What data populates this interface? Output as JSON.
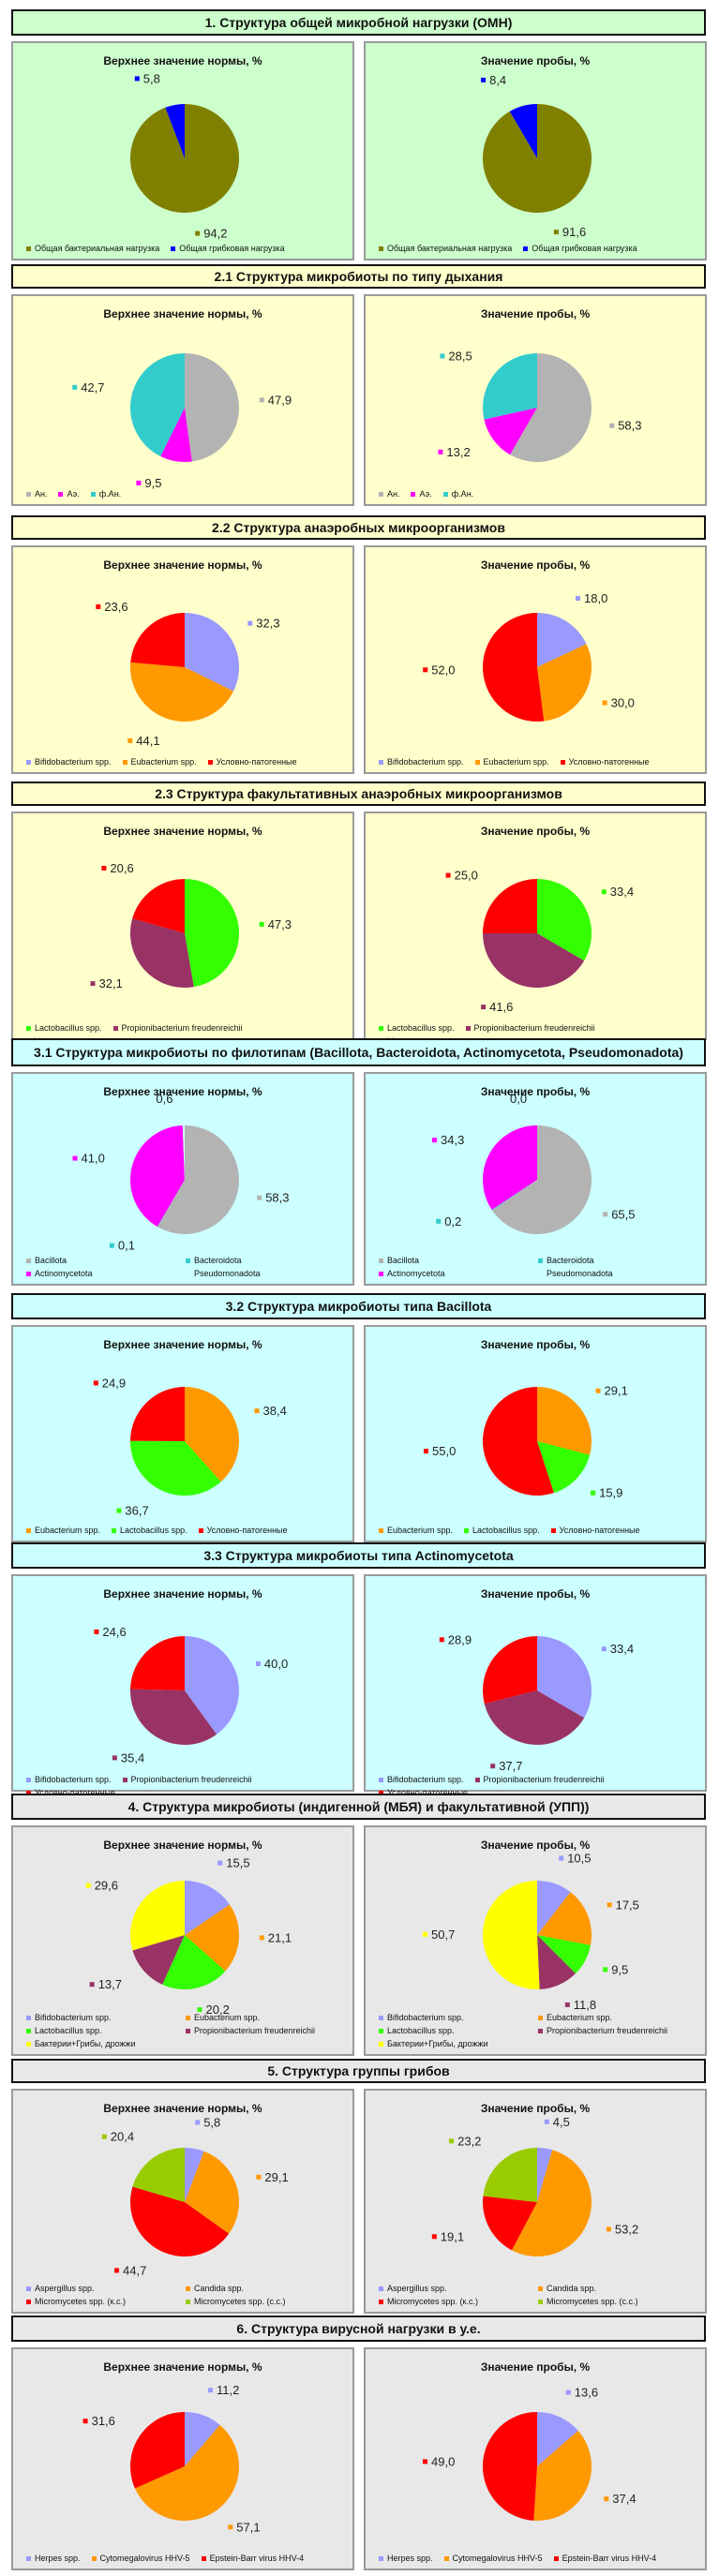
{
  "colors": {
    "green_bg": "#ccffcc",
    "yellow_bg": "#ffffcc",
    "cyan_bg": "#ccffff",
    "gray_bg": "#e8e8e8",
    "olive": "#808000",
    "blue": "#0000ff",
    "cyan": "#33cccc",
    "magenta": "#ff00ff",
    "silver": "#b3b3b3",
    "orange": "#ff9900",
    "periwinkle": "#9999ff",
    "red": "#ff0000",
    "maroon": "#993366",
    "lime": "#33ff00",
    "yellow": "#ffff00",
    "yellowgreen": "#99cc00"
  },
  "sections": [
    {
      "title": "1. Структура общей микробной нагрузки (ОМН)",
      "background": "green",
      "legend": [
        "Общая бактериальная нагрузка",
        "Общая грибковая нагрузка"
      ],
      "charts": [
        {
          "title": "Верхнее значение нормы, %",
          "chart_data": {
            "type": "pie",
            "labels": [
              "Общая бактериальная нагрузка",
              "Общая грибковая нагрузка"
            ],
            "values": [
              94.2,
              5.8
            ],
            "value_labels": [
              "94,2",
              "5,8"
            ],
            "colors": [
              "#808000",
              "#0000ff"
            ]
          }
        },
        {
          "title": "Значение пробы, %",
          "chart_data": {
            "type": "pie",
            "labels": [
              "Общая бактериальная нагрузка",
              "Общая грибковая нагрузка"
            ],
            "values": [
              91.6,
              8.4
            ],
            "value_labels": [
              "91,6",
              "8,4"
            ],
            "colors": [
              "#808000",
              "#0000ff"
            ]
          }
        }
      ]
    },
    {
      "title": "2.1 Структура микробиоты по типу дыхания",
      "background": "yellow",
      "legend": [
        "Ан.",
        "Аэ.",
        "ф.Ан."
      ],
      "charts": [
        {
          "title": "Верхнее значение нормы, %",
          "chart_data": {
            "type": "pie",
            "labels": [
              "Ан.",
              "Аэ.",
              "ф.Ан."
            ],
            "values": [
              47.9,
              9.5,
              42.7
            ],
            "value_labels": [
              "47,9",
              "9,5",
              "42,7"
            ],
            "colors": [
              "#b3b3b3",
              "#ff00ff",
              "#33cccc"
            ]
          }
        },
        {
          "title": "Значение пробы, %",
          "chart_data": {
            "type": "pie",
            "labels": [
              "Ан.",
              "Аэ.",
              "ф.Ан."
            ],
            "values": [
              58.3,
              13.2,
              28.5
            ],
            "value_labels": [
              "58,3",
              "13,2",
              "28,5"
            ],
            "colors": [
              "#b3b3b3",
              "#ff00ff",
              "#33cccc"
            ]
          }
        }
      ]
    },
    {
      "title": "2.2 Структура анаэробных микроорганизмов",
      "background": "yellow",
      "legend": [
        "Bifidobacterium spp.",
        "Eubacterium spp.",
        "Условно-патогенные"
      ],
      "charts": [
        {
          "title": "Верхнее значение нормы, %",
          "chart_data": {
            "type": "pie",
            "labels": [
              "Bifidobacterium spp.",
              "Eubacterium spp.",
              "Условно-патогенные"
            ],
            "values": [
              32.3,
              44.1,
              23.6
            ],
            "value_labels": [
              "32,3",
              "44,1",
              "23,6"
            ],
            "colors": [
              "#9999ff",
              "#ff9900",
              "#ff0000"
            ]
          }
        },
        {
          "title": "Значение пробы, %",
          "chart_data": {
            "type": "pie",
            "labels": [
              "Bifidobacterium spp.",
              "Eubacterium spp.",
              "Условно-патогенные"
            ],
            "values": [
              18.0,
              30.0,
              52.0
            ],
            "value_labels": [
              "18,0",
              "30,0",
              "52,0"
            ],
            "colors": [
              "#9999ff",
              "#ff9900",
              "#ff0000"
            ]
          }
        }
      ]
    },
    {
      "title": "2.3 Структура факультативных анаэробных микроорганизмов",
      "background": "yellow",
      "legend": [
        "Lactobacillus spp.",
        "Propionibacterium freudenreichii",
        "Условно-патогенные"
      ],
      "charts": [
        {
          "title": "Верхнее значение нормы, %",
          "chart_data": {
            "type": "pie",
            "labels": [
              "Lactobacillus spp.",
              "Propionibacterium freudenreichii",
              "Условно-патогенные"
            ],
            "values": [
              47.3,
              32.1,
              20.6
            ],
            "value_labels": [
              "47,3",
              "32,1",
              "20,6"
            ],
            "colors": [
              "#33ff00",
              "#993366",
              "#ff0000"
            ]
          }
        },
        {
          "title": "Значение пробы, %",
          "chart_data": {
            "type": "pie",
            "labels": [
              "Lactobacillus spp.",
              "Propionibacterium freudenreichii",
              "Условно-патогенные"
            ],
            "values": [
              33.4,
              41.6,
              25.0
            ],
            "value_labels": [
              "33,4",
              "41,6",
              "25,0"
            ],
            "colors": [
              "#33ff00",
              "#993366",
              "#ff0000"
            ]
          }
        }
      ]
    },
    {
      "title": "3.1 Структура микробиоты по филотипам (Bacillota, Bacteroidota, Actinomycetota, Pseudomonadota)",
      "background": "cyan",
      "legend": [
        "Bacillota",
        "Bacteroidota",
        "Actinomycetota",
        "Pseudomonadota"
      ],
      "charts": [
        {
          "title": "Верхнее значение нормы, %",
          "chart_data": {
            "type": "pie",
            "labels": [
              "Bacillota",
              "Bacteroidota",
              "Actinomycetota",
              "Pseudomonadota"
            ],
            "values": [
              58.3,
              0.1,
              41.0,
              0.6
            ],
            "value_labels": [
              "58,3",
              "0,1",
              "41,0",
              "0,6"
            ],
            "colors": [
              "#b3b3b3",
              "#33cccc",
              "#ff00ff",
              "#ccffff"
            ]
          }
        },
        {
          "title": "Значение пробы, %",
          "chart_data": {
            "type": "pie",
            "labels": [
              "Bacillota",
              "Bacteroidota",
              "Actinomycetota",
              "Pseudomonadota"
            ],
            "values": [
              65.5,
              0.2,
              34.3,
              0.0
            ],
            "value_labels": [
              "65,5",
              "0,2",
              "34,3",
              "0,0"
            ],
            "colors": [
              "#b3b3b3",
              "#33cccc",
              "#ff00ff",
              "#ccffff"
            ]
          }
        }
      ]
    },
    {
      "title": "3.2 Структура микробиоты типа Bacillota",
      "background": "cyan",
      "legend": [
        "Eubacterium spp.",
        "Lactobacillus spp.",
        "Условно-патогенные"
      ],
      "charts": [
        {
          "title": "Верхнее значение нормы, %",
          "chart_data": {
            "type": "pie",
            "labels": [
              "Eubacterium spp.",
              "Lactobacillus spp.",
              "Условно-патогенные"
            ],
            "values": [
              38.4,
              36.7,
              24.9
            ],
            "value_labels": [
              "38,4",
              "36,7",
              "24,9"
            ],
            "colors": [
              "#ff9900",
              "#33ff00",
              "#ff0000"
            ]
          }
        },
        {
          "title": "Значение пробы, %",
          "chart_data": {
            "type": "pie",
            "labels": [
              "Eubacterium spp.",
              "Lactobacillus spp.",
              "Условно-патогенные"
            ],
            "values": [
              29.1,
              15.9,
              55.0
            ],
            "value_labels": [
              "29,1",
              "15,9",
              "55,0"
            ],
            "colors": [
              "#ff9900",
              "#33ff00",
              "#ff0000"
            ]
          }
        }
      ]
    },
    {
      "title": "3.3 Структура микробиоты типа Actinomycetota",
      "background": "cyan",
      "legend": [
        "Bifidobacterium spp.",
        "Propionibacterium freudenreichii",
        "Условно-патогенные"
      ],
      "charts": [
        {
          "title": "Верхнее значение нормы, %",
          "chart_data": {
            "type": "pie",
            "labels": [
              "Bifidobacterium spp.",
              "Propionibacterium freudenreichii",
              "Условно-патогенные"
            ],
            "values": [
              40.0,
              35.4,
              24.6
            ],
            "value_labels": [
              "40,0",
              "35,4",
              "24,6"
            ],
            "colors": [
              "#9999ff",
              "#993366",
              "#ff0000"
            ]
          }
        },
        {
          "title": "Значение пробы, %",
          "chart_data": {
            "type": "pie",
            "labels": [
              "Bifidobacterium spp.",
              "Propionibacterium freudenreichii",
              "Условно-патогенные"
            ],
            "values": [
              33.4,
              37.7,
              28.9
            ],
            "value_labels": [
              "33,4",
              "37,7",
              "28,9"
            ],
            "colors": [
              "#9999ff",
              "#993366",
              "#ff0000"
            ]
          }
        }
      ]
    },
    {
      "title": "4. Структура микробиоты (индигенной (МБЯ) и факультативной (УПП))",
      "background": "gray",
      "legend": [
        "Bifidobacterium spp.",
        "Eubacterium spp.",
        "Lactobacillus spp.",
        "Propionibacterium freudenreichii",
        "Бактерии+Грибы, дрожжи"
      ],
      "charts": [
        {
          "title": "Верхнее значение нормы, %",
          "chart_data": {
            "type": "pie",
            "labels": [
              "Bifidobacterium spp.",
              "Eubacterium spp.",
              "Lactobacillus spp.",
              "Propionibacterium freudenreichii",
              "Бактерии+Грибы, дрожжи"
            ],
            "values": [
              15.5,
              21.1,
              20.2,
              13.7,
              29.6
            ],
            "value_labels": [
              "15,5",
              "21,1",
              "20,2",
              "13,7",
              "29,6"
            ],
            "colors": [
              "#9999ff",
              "#ff9900",
              "#33ff00",
              "#993366",
              "#ffff00"
            ]
          }
        },
        {
          "title": "Значение пробы, %",
          "chart_data": {
            "type": "pie",
            "labels": [
              "Bifidobacterium spp.",
              "Eubacterium spp.",
              "Lactobacillus spp.",
              "Propionibacterium freudenreichii",
              "Бактерии+Грибы, дрожжи"
            ],
            "values": [
              10.5,
              17.5,
              9.5,
              11.8,
              50.7
            ],
            "value_labels": [
              "10,5",
              "17,5",
              "9,5",
              "11,8",
              "50,7"
            ],
            "colors": [
              "#9999ff",
              "#ff9900",
              "#33ff00",
              "#993366",
              "#ffff00"
            ]
          }
        }
      ]
    },
    {
      "title": "5. Структура группы грибов",
      "background": "gray",
      "legend": [
        "Aspergillus spp.",
        "Candida spp.",
        "Micromycetes spp. (к.с.)",
        "Micromycetes spp. (с.с.)"
      ],
      "charts": [
        {
          "title": "Верхнее значение нормы, %",
          "chart_data": {
            "type": "pie",
            "labels": [
              "Aspergillus spp.",
              "Candida spp.",
              "Micromycetes spp. (к.с.)",
              "Micromycetes spp. (с.с.)"
            ],
            "values": [
              5.8,
              29.1,
              44.7,
              20.4
            ],
            "value_labels": [
              "5,8",
              "29,1",
              "44,7",
              "20,4"
            ],
            "colors": [
              "#9999ff",
              "#ff9900",
              "#ff0000",
              "#99cc00"
            ]
          }
        },
        {
          "title": "Значение пробы, %",
          "chart_data": {
            "type": "pie",
            "labels": [
              "Aspergillus spp.",
              "Candida spp.",
              "Micromycetes spp. (к.с.)",
              "Micromycetes spp. (с.с.)"
            ],
            "values": [
              4.5,
              53.2,
              19.1,
              23.2
            ],
            "value_labels": [
              "4,5",
              "53,2",
              "19,1",
              "23,2"
            ],
            "colors": [
              "#9999ff",
              "#ff9900",
              "#ff0000",
              "#99cc00"
            ]
          }
        }
      ]
    },
    {
      "title": "6. Структура вирусной нагрузки в у.е.",
      "background": "gray",
      "legend": [
        "Herpes spp.",
        "Cytomegalovirus HHV-5",
        "Epstein-Barr virus HHV-4"
      ],
      "charts": [
        {
          "title": "Верхнее значение нормы, %",
          "chart_data": {
            "type": "pie",
            "labels": [
              "Herpes spp.",
              "Cytomegalovirus HHV-5",
              "Epstein-Barr virus HHV-4"
            ],
            "values": [
              11.2,
              57.1,
              31.6
            ],
            "value_labels": [
              "11,2",
              "57,1",
              "31,6"
            ],
            "colors": [
              "#9999ff",
              "#ff9900",
              "#ff0000"
            ]
          }
        },
        {
          "title": "Значение пробы, %",
          "chart_data": {
            "type": "pie",
            "labels": [
              "Herpes spp.",
              "Cytomegalovirus HHV-5",
              "Epstein-Barr virus HHV-4"
            ],
            "values": [
              13.6,
              37.4,
              49.0
            ],
            "value_labels": [
              "13,6",
              "37,4",
              "49,0"
            ],
            "colors": [
              "#9999ff",
              "#ff9900",
              "#ff0000"
            ]
          }
        }
      ]
    }
  ]
}
